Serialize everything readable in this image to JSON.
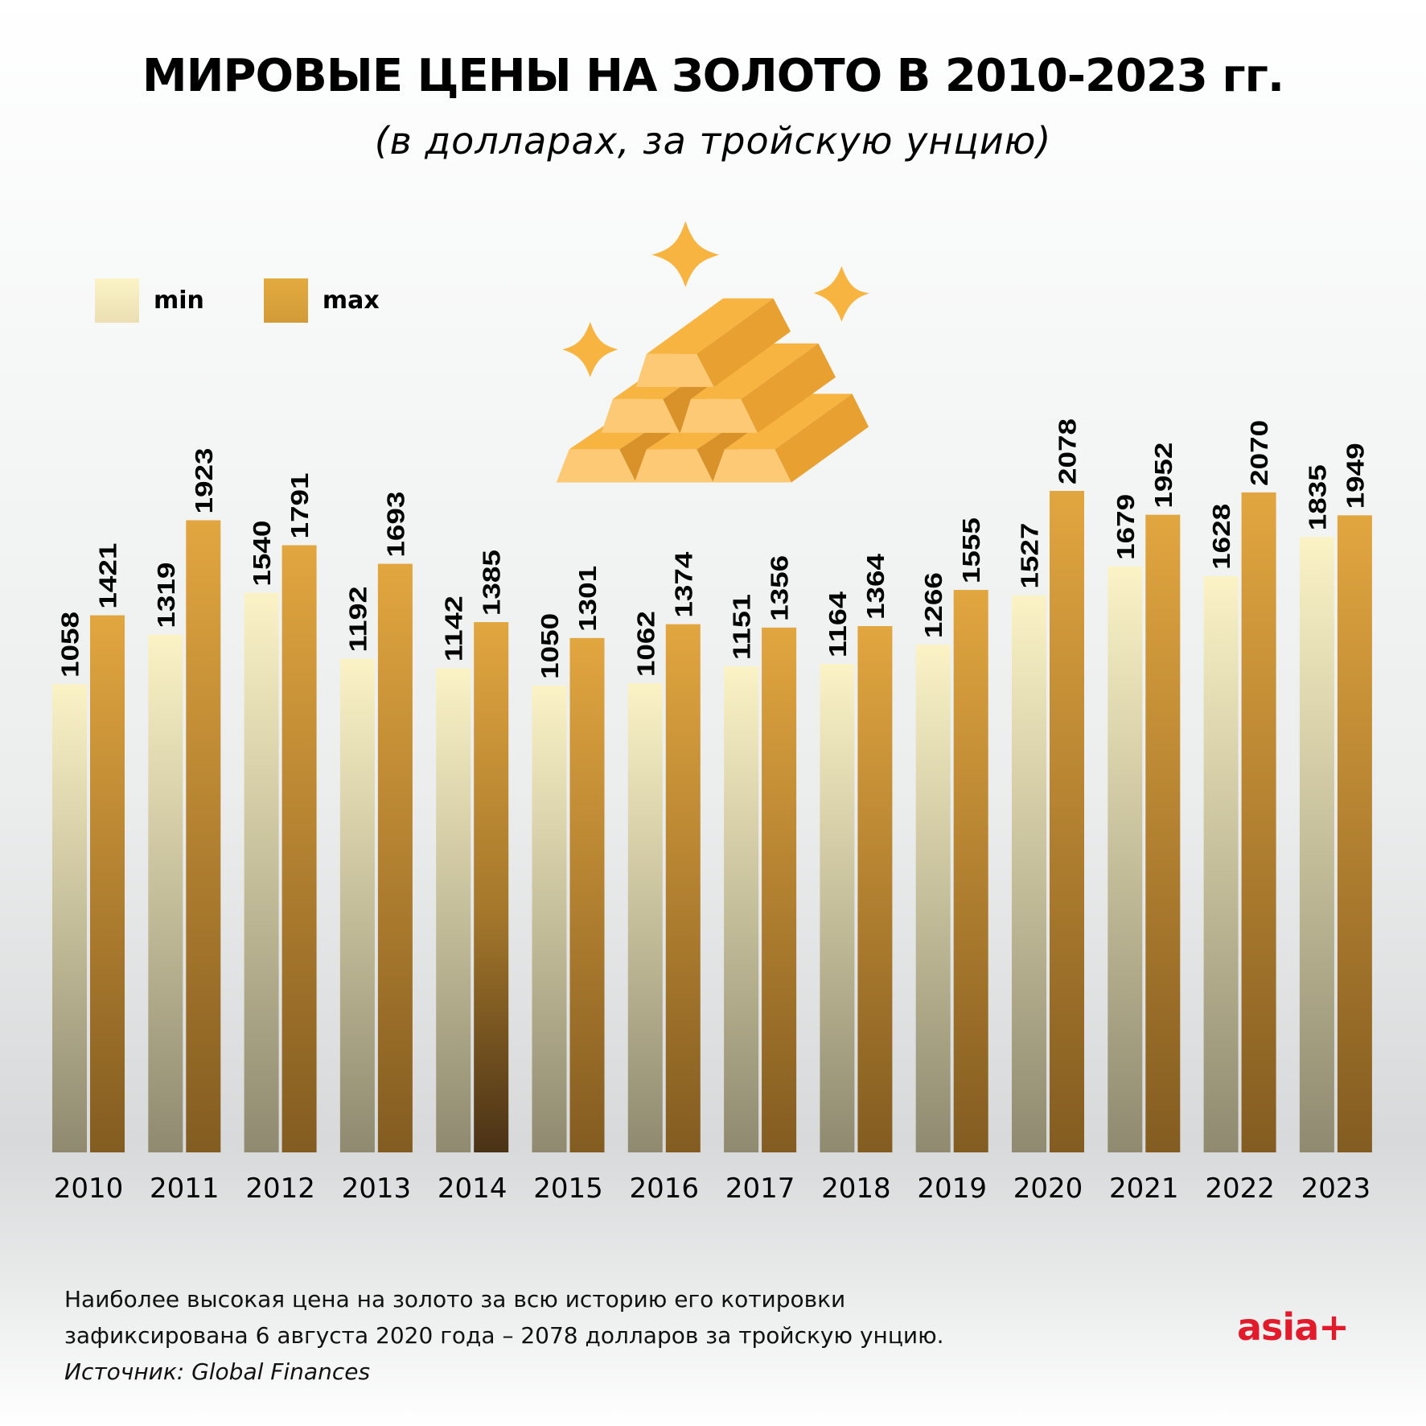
{
  "header": {
    "title": "МИРОВЫЕ ЦЕНЫ НА ЗОЛОТО В 2010-2023 гг.",
    "subtitle": "(в долларах, за тройскую унцию)"
  },
  "legend": {
    "min_label": "min",
    "max_label": "max"
  },
  "colors": {
    "min_top": "#fbf3c6",
    "min_bottom": "#8f8a70",
    "max_top": "#e2a640",
    "max_bottom": "#835c21",
    "gold_light": "#fdc975",
    "gold_mid": "#f8b440",
    "gold_dark": "#e8a030",
    "gold_shadow": "#d9922a",
    "logo": "#e11b2b"
  },
  "illustration": {
    "icon": "gold-bars-with-sparkles-icon"
  },
  "chart_data": {
    "type": "bar",
    "title": "МИРОВЫЕ ЦЕНЫ НА ЗОЛОТО В 2010-2023 гг.",
    "subtitle": "(в долларах, за тройскую унцию)",
    "xlabel": "",
    "ylabel": "",
    "grid": false,
    "legend_position": "top-left",
    "categories": [
      "2010",
      "2011",
      "2012",
      "2013",
      "2014",
      "2015",
      "2016",
      "2017",
      "2018",
      "2019",
      "2020",
      "2021",
      "2022",
      "2023"
    ],
    "series": [
      {
        "name": "min",
        "values": [
          1058,
          1319,
          1540,
          1192,
          1142,
          1050,
          1062,
          1151,
          1164,
          1266,
          1527,
          1679,
          1628,
          1835
        ]
      },
      {
        "name": "max",
        "values": [
          1421,
          1923,
          1791,
          1693,
          1385,
          1301,
          1374,
          1356,
          1364,
          1555,
          2078,
          1952,
          2070,
          1949
        ]
      }
    ]
  },
  "footer": {
    "note_line1": "Наиболее высокая цена на золото за всю историю его котировки",
    "note_line2": "зафиксирована 6 августа 2020 года – 2078 долларов за тройскую унцию.",
    "source": "Источник: Global Finances",
    "logo": "asia+"
  }
}
